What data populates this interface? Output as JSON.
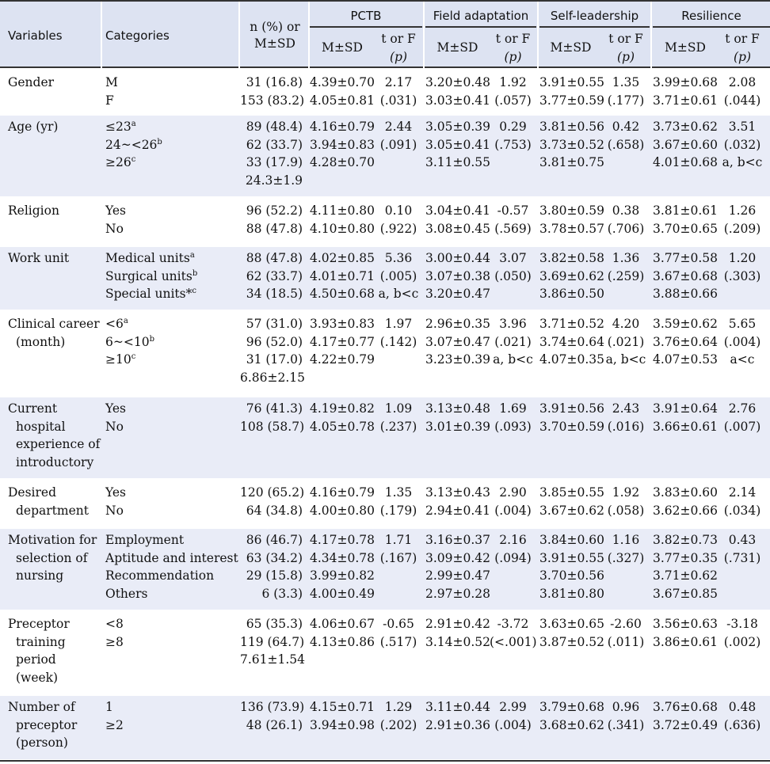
{
  "header": {
    "variables": "Variables",
    "categories": "Categories",
    "n_label_1": "n (%) or",
    "n_label_2": "M±SD",
    "groups": [
      "PCTB",
      "Field adaptation",
      "Self-leadership",
      "Resilience"
    ],
    "msd": "M±SD",
    "torf": "t or F",
    "p": "(p)"
  },
  "rows": [
    {
      "variable": [
        "Gender"
      ],
      "categories": [
        "M",
        "F"
      ],
      "n": [
        "31 (16.8)",
        "153 (83.2)"
      ],
      "pctb_m": [
        "4.39±0.70",
        "4.05±0.81"
      ],
      "pctb_t": [
        "2.17",
        "(.031)"
      ],
      "fa_m": [
        "3.20±0.48",
        "3.03±0.41"
      ],
      "fa_t": [
        "1.92",
        "(.057)"
      ],
      "sl_m": [
        "3.91±0.55",
        "3.77±0.59"
      ],
      "sl_t": [
        "1.35",
        "(.177)"
      ],
      "re_m": [
        "3.99±0.68",
        "3.71±0.61"
      ],
      "re_t": [
        "2.08",
        "(.044)"
      ]
    },
    {
      "variable": [
        "Age (yr)"
      ],
      "categories": [
        "≤23",
        "24~<26",
        "≥26"
      ],
      "category_sup": [
        "a",
        "b",
        "c"
      ],
      "n": [
        "89 (48.4)",
        "62 (33.7)",
        "33 (17.9)",
        "24.3±1.9"
      ],
      "pctb_m": [
        "4.16±0.79",
        "3.94±0.83",
        "4.28±0.70"
      ],
      "pctb_t": [
        "2.44",
        "(.091)"
      ],
      "fa_m": [
        "3.05±0.39",
        "3.05±0.41",
        "3.11±0.55"
      ],
      "fa_t": [
        "0.29",
        "(.753)"
      ],
      "sl_m": [
        "3.81±0.56",
        "3.73±0.52",
        "3.81±0.75"
      ],
      "sl_t": [
        "0.42",
        "(.658)"
      ],
      "re_m": [
        "3.73±0.62",
        "3.67±0.60",
        "4.01±0.68"
      ],
      "re_t": [
        "3.51",
        "(.032)",
        "a, b<c"
      ]
    },
    {
      "variable": [
        "Religion"
      ],
      "categories": [
        "Yes",
        "No"
      ],
      "n": [
        "96 (52.2)",
        "88 (47.8)"
      ],
      "pctb_m": [
        "4.11±0.80",
        "4.10±0.80"
      ],
      "pctb_t": [
        "0.10",
        "(.922)"
      ],
      "fa_m": [
        "3.04±0.41",
        "3.08±0.45"
      ],
      "fa_t": [
        "-0.57",
        "(.569)"
      ],
      "sl_m": [
        "3.80±0.59",
        "3.78±0.57"
      ],
      "sl_t": [
        "0.38",
        "(.706)"
      ],
      "re_m": [
        "3.81±0.61",
        "3.70±0.65"
      ],
      "re_t": [
        "1.26",
        "(.209)"
      ]
    },
    {
      "variable": [
        "Work unit"
      ],
      "categories": [
        "Medical units",
        "Surgical units",
        "Special units*"
      ],
      "category_sup": [
        "a",
        "b",
        "c"
      ],
      "n": [
        "88 (47.8)",
        "62 (33.7)",
        "34 (18.5)"
      ],
      "pctb_m": [
        "4.02±0.85",
        "4.01±0.71",
        "4.50±0.68"
      ],
      "pctb_t": [
        "5.36",
        "(.005)",
        "a, b<c"
      ],
      "fa_m": [
        "3.00±0.44",
        "3.07±0.38",
        "3.20±0.47"
      ],
      "fa_t": [
        "3.07",
        "(.050)"
      ],
      "sl_m": [
        "3.82±0.58",
        "3.69±0.62",
        "3.86±0.50"
      ],
      "sl_t": [
        "1.36",
        "(.259)"
      ],
      "re_m": [
        "3.77±0.58",
        "3.67±0.68",
        "3.88±0.66"
      ],
      "re_t": [
        "1.20",
        "(.303)"
      ]
    },
    {
      "variable": [
        "Clinical career",
        "(month)"
      ],
      "categories": [
        "<6",
        "6~<10",
        "≥10"
      ],
      "category_sup": [
        "a",
        "b",
        "c"
      ],
      "n": [
        "57 (31.0)",
        "96 (52.0)",
        "31 (17.0)",
        "6.86±2.15"
      ],
      "pctb_m": [
        "3.93±0.83",
        "4.17±0.77",
        "4.22±0.79"
      ],
      "pctb_t": [
        "1.97",
        "(.142)"
      ],
      "fa_m": [
        "2.96±0.35",
        "3.07±0.47",
        "3.23±0.39"
      ],
      "fa_t": [
        "3.96",
        "(.021)",
        "a, b<c"
      ],
      "sl_m": [
        "3.71±0.52",
        "3.74±0.64",
        "4.07±0.35"
      ],
      "sl_t": [
        "4.20",
        "(.021)",
        "a, b<c"
      ],
      "re_m": [
        "3.59±0.62",
        "3.76±0.64",
        "4.07±0.53"
      ],
      "re_t": [
        "5.65",
        "(.004)",
        "a<c"
      ]
    },
    {
      "variable": [
        "Current",
        "hospital",
        "experience of",
        "introductory"
      ],
      "categories": [
        "Yes",
        "No"
      ],
      "n": [
        "76 (41.3)",
        "108 (58.7)"
      ],
      "pctb_m": [
        "4.19±0.82",
        "4.05±0.78"
      ],
      "pctb_t": [
        "1.09",
        "(.237)"
      ],
      "fa_m": [
        "3.13±0.48",
        "3.01±0.39"
      ],
      "fa_t": [
        "1.69",
        "(.093)"
      ],
      "sl_m": [
        "3.91±0.56",
        "3.70±0.59"
      ],
      "sl_t": [
        "2.43",
        "(.016)"
      ],
      "re_m": [
        "3.91±0.64",
        "3.66±0.61"
      ],
      "re_t": [
        "2.76",
        "(.007)"
      ]
    },
    {
      "variable": [
        "Desired",
        "department"
      ],
      "categories": [
        "Yes",
        "No"
      ],
      "n": [
        "120 (65.2)",
        "64 (34.8)"
      ],
      "pctb_m": [
        "4.16±0.79",
        "4.00±0.80"
      ],
      "pctb_t": [
        "1.35",
        "(.179)"
      ],
      "fa_m": [
        "3.13±0.43",
        "2.94±0.41"
      ],
      "fa_t": [
        "2.90",
        "(.004)"
      ],
      "sl_m": [
        "3.85±0.55",
        "3.67±0.62"
      ],
      "sl_t": [
        "1.92",
        "(.058)"
      ],
      "re_m": [
        "3.83±0.60",
        "3.62±0.66"
      ],
      "re_t": [
        "2.14",
        "(.034)"
      ]
    },
    {
      "variable": [
        "Motivation for",
        "selection of",
        "nursing"
      ],
      "categories": [
        "Employment",
        "Aptitude and interest",
        "Recommendation",
        "Others"
      ],
      "n": [
        "86 (46.7)",
        "63 (34.2)",
        "29 (15.8)",
        "6 (3.3)"
      ],
      "pctb_m": [
        "4.17±0.78",
        "4.34±0.78",
        "3.99±0.82",
        "4.00±0.49"
      ],
      "pctb_t": [
        "1.71",
        "(.167)"
      ],
      "fa_m": [
        "3.16±0.37",
        "3.09±0.42",
        "2.99±0.47",
        "2.97±0.28"
      ],
      "fa_t": [
        "2.16",
        "(.094)"
      ],
      "sl_m": [
        "3.84±0.60",
        "3.91±0.55",
        "3.70±0.56",
        "3.81±0.80"
      ],
      "sl_t": [
        "1.16",
        "(.327)"
      ],
      "re_m": [
        "3.82±0.73",
        "3.77±0.35",
        "3.71±0.62",
        "3.67±0.85"
      ],
      "re_t": [
        "0.43",
        "(.731)"
      ]
    },
    {
      "variable": [
        "Preceptor",
        "training",
        "period",
        "(week)"
      ],
      "categories": [
        "<8",
        "≥8"
      ],
      "n": [
        "65 (35.3)",
        "119 (64.7)",
        "7.61±1.54"
      ],
      "pctb_m": [
        "4.06±0.67",
        "4.13±0.86"
      ],
      "pctb_t": [
        "-0.65",
        "(.517)"
      ],
      "fa_m": [
        "2.91±0.42",
        "3.14±0.52"
      ],
      "fa_t": [
        "-3.72",
        "(<.001)"
      ],
      "sl_m": [
        "3.63±0.65",
        "3.87±0.52"
      ],
      "sl_t": [
        "-2.60",
        "(.011)"
      ],
      "re_m": [
        "3.56±0.63",
        "3.86±0.61"
      ],
      "re_t": [
        "-3.18",
        "(.002)"
      ]
    },
    {
      "variable": [
        "Number of",
        "preceptor",
        "(person)"
      ],
      "categories": [
        "1",
        "≥2"
      ],
      "n": [
        "136 (73.9)",
        "48 (26.1)"
      ],
      "pctb_m": [
        "4.15±0.71",
        "3.94±0.98"
      ],
      "pctb_t": [
        "1.29",
        "(.202)"
      ],
      "fa_m": [
        "3.11±0.44",
        "2.91±0.36"
      ],
      "fa_t": [
        "2.99",
        "(.004)"
      ],
      "sl_m": [
        "3.79±0.68",
        "3.68±0.62"
      ],
      "sl_t": [
        "0.96",
        "(.341)"
      ],
      "re_m": [
        "3.76±0.68",
        "3.72±0.49"
      ],
      "re_t": [
        "0.48",
        "(.636)"
      ]
    }
  ]
}
